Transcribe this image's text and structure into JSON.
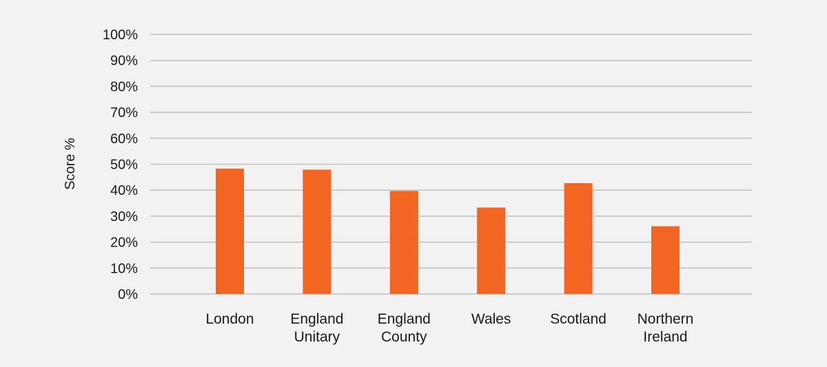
{
  "chart_data": {
    "type": "bar",
    "title": "",
    "xlabel": "",
    "ylabel": "Score %",
    "ylim": [
      0,
      100
    ],
    "yticks": [
      0,
      10,
      20,
      30,
      40,
      50,
      60,
      70,
      80,
      90,
      100
    ],
    "ytick_labels": [
      "0%",
      "10%",
      "20%",
      "30%",
      "40%",
      "50%",
      "60%",
      "70%",
      "80%",
      "90%",
      "100%"
    ],
    "grid": true,
    "legend": "none",
    "categories": [
      "London",
      "England Unitary",
      "England County",
      "Wales",
      "Scotland",
      "Northern Ireland"
    ],
    "category_lines": [
      [
        "London"
      ],
      [
        "England",
        "Unitary"
      ],
      [
        "England",
        "County"
      ],
      [
        "Wales"
      ],
      [
        "Scotland"
      ],
      [
        "Northern",
        "Ireland"
      ]
    ],
    "values": [
      48.3,
      47.9,
      39.7,
      33.3,
      42.7,
      26.1
    ],
    "bar_color": "#f26522",
    "grid_color": "#bfbfbf",
    "background_color": "#f2f2f2"
  }
}
